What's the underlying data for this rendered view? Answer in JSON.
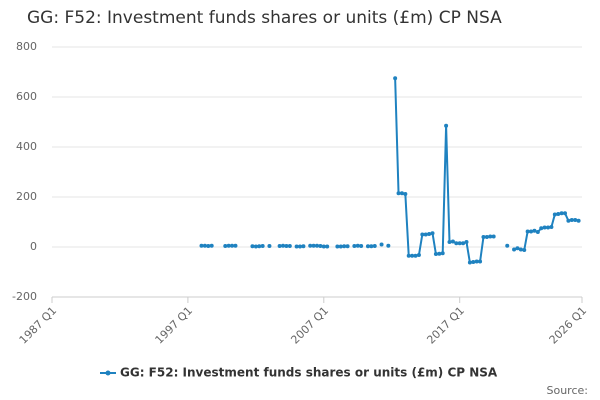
{
  "chart_data": {
    "type": "line",
    "title": "GG: F52: Investment funds shares or units (£m) CP NSA",
    "source": "Source:",
    "x": [
      1998,
      1998.25,
      1998.5,
      1998.75,
      1999,
      1999.75,
      2000,
      2000.25,
      2000.5,
      2000.75,
      2001.75,
      2002,
      2002.25,
      2002.5,
      2002.75,
      2003,
      2003.25,
      2003.75,
      2004,
      2004.25,
      2004.5,
      2004.75,
      2005,
      2005.25,
      2005.5,
      2005.75,
      2006,
      2006.25,
      2006.5,
      2006.75,
      2007,
      2007.25,
      2007.5,
      2008,
      2008.25,
      2008.5,
      2008.75,
      2009,
      2009.25,
      2009.5,
      2009.75,
      2010,
      2010.25,
      2010.5,
      2010.75,
      2011,
      2011.25,
      2011.5,
      2011.75,
      2012,
      2012.25,
      2012.5,
      2012.75,
      2013,
      2013.25,
      2013.5,
      2013.75,
      2014,
      2014.25,
      2014.5,
      2014.75,
      2015,
      2015.25,
      2015.5,
      2015.75,
      2016,
      2016.25,
      2016.5,
      2016.75,
      2017,
      2017.25,
      2017.5,
      2017.75,
      2018,
      2018.25,
      2018.5,
      2018.75,
      2019,
      2019.25,
      2019.5,
      2019.75,
      2020.5,
      2020.75,
      2021,
      2021.25,
      2021.5,
      2021.75,
      2022,
      2022.25,
      2022.5,
      2022.75,
      2023,
      2023.25,
      2023.5,
      2023.75,
      2024,
      2024.25,
      2024.5,
      2024.75,
      2025,
      2025.25,
      2025.5,
      2025.75
    ],
    "series": [
      {
        "name": "GG: F52: Investment funds shares or units (£m) CP NSA",
        "color": "#1f82c0",
        "values": [
          5,
          5,
          4,
          5,
          null,
          4,
          5,
          5,
          5,
          null,
          3,
          2,
          3,
          4,
          null,
          4,
          null,
          4,
          5,
          4,
          4,
          null,
          2,
          2,
          3,
          null,
          5,
          5,
          5,
          4,
          2,
          2,
          null,
          2,
          2,
          3,
          3,
          null,
          4,
          5,
          4,
          null,
          3,
          3,
          4,
          null,
          10,
          null,
          5,
          null,
          675,
          215,
          215,
          212,
          -35,
          -35,
          -35,
          -32,
          50,
          50,
          52,
          55,
          -28,
          -27,
          -25,
          485,
          20,
          22,
          15,
          15,
          15,
          20,
          -62,
          -60,
          -58,
          -58,
          40,
          40,
          42,
          42,
          null,
          5,
          null,
          -10,
          -5,
          -10,
          -12,
          62,
          62,
          65,
          60,
          75,
          78,
          78,
          80,
          130,
          132,
          135,
          135,
          105,
          108,
          108,
          105
        ]
      }
    ],
    "xlim": [
      1987,
      2026
    ],
    "xticks": [
      {
        "value": 1987,
        "label": "1987 Q1"
      },
      {
        "value": 1997,
        "label": "1997 Q1"
      },
      {
        "value": 2007,
        "label": "2007 Q1"
      },
      {
        "value": 2017,
        "label": "2017 Q1"
      },
      {
        "value": 2026,
        "label": "2026 Q1"
      }
    ],
    "ylim": [
      -200,
      800
    ],
    "yticks": [
      -200,
      0,
      200,
      400,
      600,
      800
    ],
    "grid": true
  }
}
